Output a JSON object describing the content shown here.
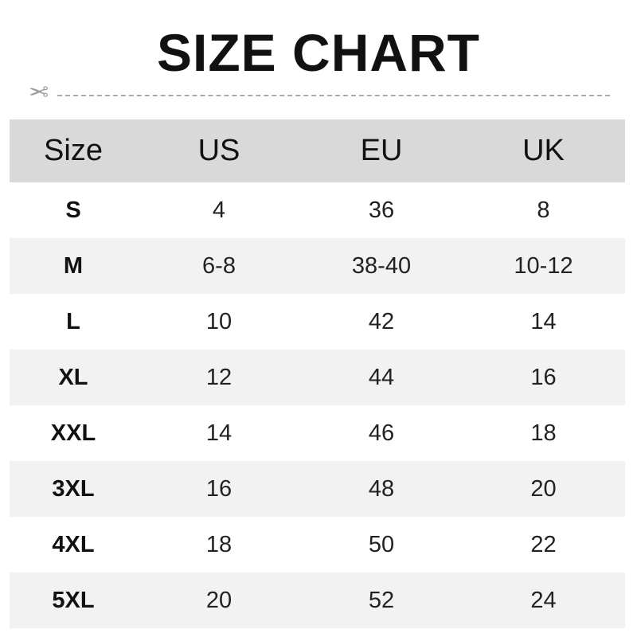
{
  "title": "SIZE CHART",
  "icons": {
    "cut": "scissors-icon"
  },
  "colors": {
    "header_bg": "#d9d9d9",
    "alt_row_bg": "#f2f2f2"
  },
  "table": {
    "headers": [
      "Size",
      "US",
      "EU",
      "UK"
    ],
    "rows": [
      [
        "S",
        "4",
        "36",
        "8"
      ],
      [
        "M",
        "6-8",
        "38-40",
        "10-12"
      ],
      [
        "L",
        "10",
        "42",
        "14"
      ],
      [
        "XL",
        "12",
        "44",
        "16"
      ],
      [
        "XXL",
        "14",
        "46",
        "18"
      ],
      [
        "3XL",
        "16",
        "48",
        "20"
      ],
      [
        "4XL",
        "18",
        "50",
        "22"
      ],
      [
        "5XL",
        "20",
        "52",
        "24"
      ]
    ]
  }
}
